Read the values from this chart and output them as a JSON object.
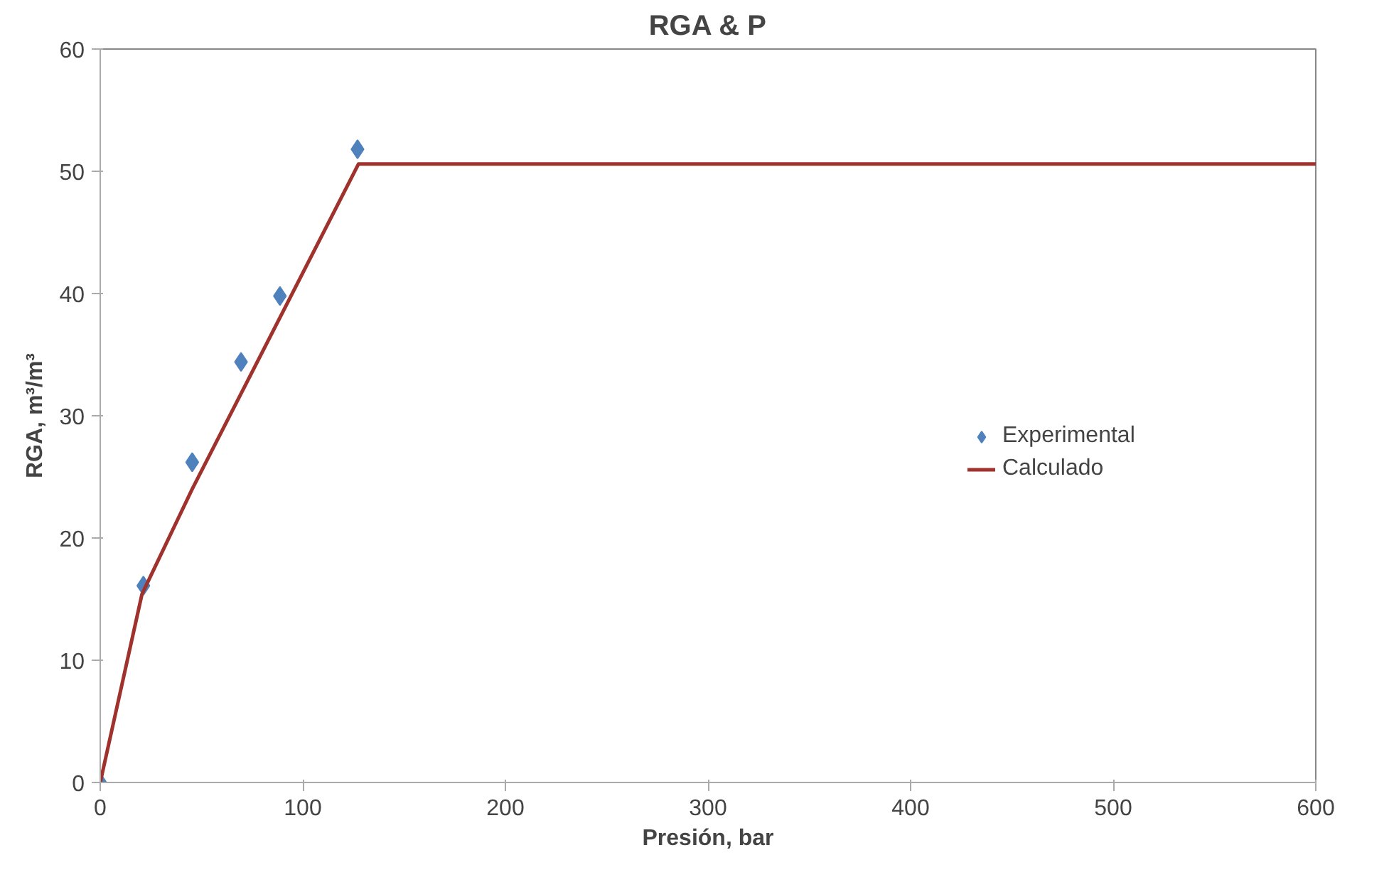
{
  "chart_data": {
    "type": "scatter",
    "title": "RGA & P",
    "xlabel": "Presión, bar",
    "ylabel": "RGA, m³/m³",
    "xlim": [
      0,
      600
    ],
    "xticks": [
      0,
      100,
      200,
      300,
      400,
      500,
      600
    ],
    "ylim": [
      0,
      60
    ],
    "yticks": [
      0,
      10,
      20,
      30,
      40,
      50,
      60
    ],
    "grid": false,
    "legend": "right",
    "series": [
      {
        "name": "Experimental",
        "marker": "diamond",
        "color": "#4f81bd",
        "x": [
          0,
          21.3,
          45.4,
          69.5,
          88.7,
          127
        ],
        "values": [
          0,
          16.1,
          26.2,
          34.4,
          39.8,
          51.8
        ]
      },
      {
        "name": "Calculado",
        "type": "line",
        "marker": "none",
        "color": "#a0322d",
        "x": [
          0,
          20.6,
          45.4,
          127.5,
          600
        ],
        "values": [
          0,
          15.4,
          24,
          50.6,
          50.6
        ]
      }
    ]
  }
}
